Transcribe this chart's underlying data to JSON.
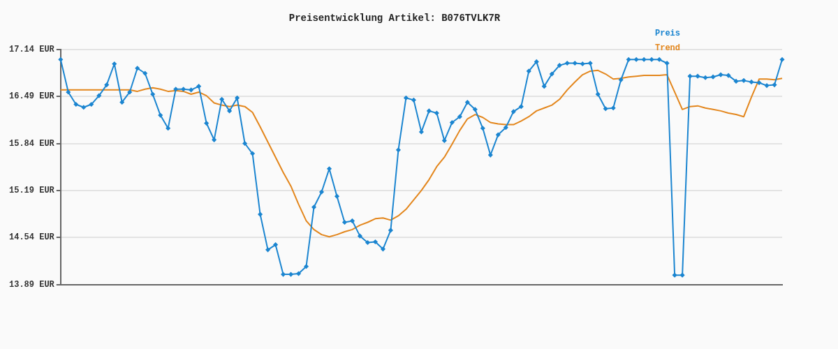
{
  "chart_data": {
    "type": "line",
    "title": "Preisentwicklung Artikel: B076TVLK7R",
    "categories": [
      null,
      null,
      null,
      null,
      null,
      null,
      null,
      null,
      null,
      null,
      null,
      null,
      null,
      null,
      null,
      null,
      null,
      null,
      null,
      null,
      null,
      null,
      null,
      null,
      null,
      null,
      null,
      null,
      null,
      null,
      null,
      null,
      null,
      null,
      null,
      null,
      null,
      null,
      null,
      null,
      null,
      null,
      null,
      null,
      null,
      null,
      null,
      null,
      null,
      null,
      null,
      null,
      null,
      null,
      null,
      null,
      null,
      null,
      null,
      null,
      null,
      null,
      null,
      null,
      null,
      null,
      null,
      null,
      null,
      null,
      null,
      null,
      null,
      null,
      null,
      null,
      null,
      null,
      null,
      null,
      null,
      null,
      null,
      null,
      null,
      null,
      null,
      null,
      null,
      null,
      null,
      null,
      null,
      null,
      null
    ],
    "series": [
      {
        "name": "Preis",
        "color": "#1b85d0",
        "marker": "diamond",
        "values": [
          17.0,
          16.55,
          16.38,
          16.34,
          16.38,
          16.5,
          16.65,
          16.94,
          16.41,
          16.55,
          16.88,
          16.81,
          16.52,
          16.23,
          16.05,
          16.59,
          16.59,
          16.58,
          16.63,
          16.12,
          15.89,
          16.45,
          16.29,
          16.47,
          15.84,
          15.7,
          14.86,
          14.37,
          14.44,
          14.03,
          14.03,
          14.04,
          14.14,
          14.96,
          15.17,
          15.49,
          15.11,
          14.75,
          14.77,
          14.56,
          14.47,
          14.48,
          14.38,
          14.64,
          15.75,
          16.47,
          16.44,
          16.0,
          16.29,
          16.26,
          15.88,
          16.13,
          16.21,
          16.41,
          16.31,
          16.05,
          15.68,
          15.96,
          16.06,
          16.28,
          16.35,
          16.84,
          16.97,
          16.63,
          16.8,
          16.92,
          16.95,
          16.95,
          16.94,
          16.95,
          16.52,
          16.32,
          16.33,
          16.72,
          17.0,
          17.0,
          17.0,
          17.0,
          17.0,
          16.95,
          14.02,
          14.02,
          16.77,
          16.77,
          16.75,
          16.76,
          16.79,
          16.78,
          16.7,
          16.71,
          16.69,
          16.68,
          16.64,
          16.65,
          17.0
        ]
      },
      {
        "name": "Trend",
        "color": "#e3861c",
        "marker": "none",
        "values": [
          16.58,
          16.58,
          16.58,
          16.58,
          16.58,
          16.58,
          16.58,
          16.58,
          16.58,
          16.58,
          16.56,
          16.59,
          16.61,
          16.59,
          16.56,
          16.57,
          16.56,
          16.52,
          16.55,
          16.5,
          16.4,
          16.37,
          16.35,
          16.37,
          16.35,
          16.27,
          16.07,
          15.86,
          15.65,
          15.44,
          15.25,
          15.0,
          14.77,
          14.65,
          14.58,
          14.55,
          14.58,
          14.62,
          14.65,
          14.71,
          14.75,
          14.8,
          14.81,
          14.78,
          14.84,
          14.93,
          15.06,
          15.19,
          15.34,
          15.52,
          15.65,
          15.83,
          16.02,
          16.18,
          16.24,
          16.2,
          16.13,
          16.11,
          16.1,
          16.1,
          16.15,
          16.21,
          16.29,
          16.33,
          16.37,
          16.45,
          16.58,
          16.69,
          16.79,
          16.84,
          16.85,
          16.8,
          16.73,
          16.74,
          16.76,
          16.77,
          16.78,
          16.78,
          16.78,
          16.79,
          16.55,
          16.31,
          16.35,
          16.36,
          16.33,
          16.31,
          16.29,
          16.26,
          16.24,
          16.21,
          16.48,
          16.73,
          16.73,
          16.72,
          16.74
        ]
      }
    ],
    "ylim": [
      13.89,
      17.14
    ],
    "yticks": [
      {
        "value": 13.89,
        "label": "13.89 EUR"
      },
      {
        "value": 14.54,
        "label": "14.54 EUR"
      },
      {
        "value": 15.19,
        "label": "15.19 EUR"
      },
      {
        "value": 15.84,
        "label": "15.84 EUR"
      },
      {
        "value": 16.49,
        "label": "16.49 EUR"
      },
      {
        "value": 17.14,
        "label": "17.14 EUR"
      }
    ],
    "grid": "y",
    "legend": "top right"
  }
}
